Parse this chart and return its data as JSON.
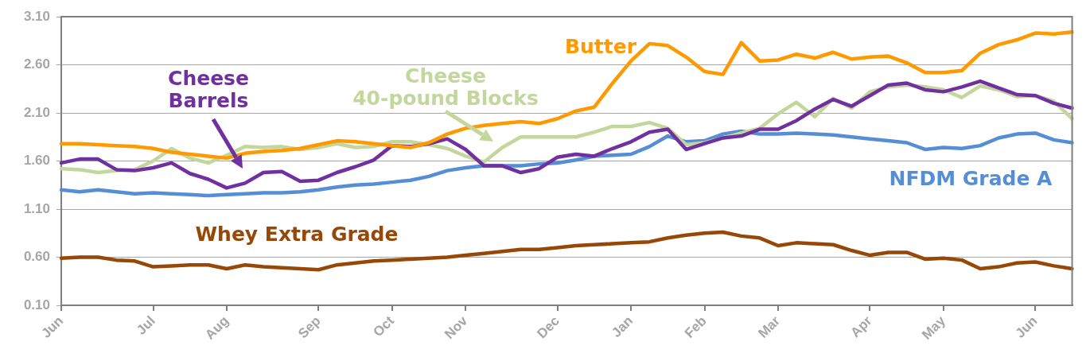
{
  "chart_data": {
    "type": "line",
    "categories": [
      "Jun",
      null,
      null,
      null,
      null,
      "Jul",
      null,
      null,
      null,
      "Aug",
      null,
      null,
      null,
      null,
      "Sep",
      null,
      null,
      null,
      "Oct",
      null,
      null,
      null,
      "Nov",
      null,
      null,
      null,
      null,
      "Dec",
      null,
      null,
      null,
      "Jan",
      null,
      null,
      null,
      "Feb",
      null,
      null,
      null,
      "Mar",
      null,
      null,
      null,
      null,
      "Apr",
      null,
      null,
      null,
      "May",
      null,
      null,
      null,
      null,
      "Jun",
      null,
      null
    ],
    "ylim": [
      0.1,
      3.1
    ],
    "yticks": [
      {
        "value": 0.1,
        "label": "0.10"
      },
      {
        "value": 0.6,
        "label": "0.60"
      },
      {
        "value": 1.1,
        "label": "1.10"
      },
      {
        "value": 1.6,
        "label": "1.60"
      },
      {
        "value": 2.1,
        "label": "2.10"
      },
      {
        "value": 2.6,
        "label": "2.60"
      },
      {
        "value": 3.1,
        "label": "3.10"
      }
    ],
    "grid": "y",
    "legend": false,
    "marker": "none",
    "line_style": "solid",
    "series": [
      {
        "name": "Butter",
        "color": "#ff9900",
        "values": [
          1.78,
          1.78,
          1.77,
          1.76,
          1.75,
          1.73,
          1.69,
          1.67,
          1.65,
          1.63,
          1.68,
          1.7,
          1.71,
          1.73,
          1.77,
          1.81,
          1.8,
          1.78,
          1.76,
          1.74,
          1.79,
          1.88,
          1.94,
          1.97,
          1.99,
          2.01,
          1.99,
          2.04,
          2.12,
          2.16,
          2.41,
          2.64,
          2.82,
          2.8,
          2.68,
          2.53,
          2.5,
          2.83,
          2.64,
          2.65,
          2.71,
          2.67,
          2.73,
          2.66,
          2.68,
          2.69,
          2.62,
          2.52,
          2.52,
          2.54,
          2.72,
          2.81,
          2.86,
          2.93,
          2.92,
          2.94
        ]
      },
      {
        "name": "Cheese Barrels",
        "color": "#7030a0",
        "values": [
          1.58,
          1.62,
          1.62,
          1.51,
          1.5,
          1.53,
          1.58,
          1.47,
          1.41,
          1.32,
          1.37,
          1.48,
          1.49,
          1.39,
          1.4,
          1.48,
          1.54,
          1.61,
          1.76,
          1.75,
          1.78,
          1.83,
          1.72,
          1.55,
          1.55,
          1.48,
          1.52,
          1.64,
          1.67,
          1.65,
          1.73,
          1.8,
          1.9,
          1.93,
          1.72,
          1.78,
          1.84,
          1.86,
          1.93,
          1.93,
          2.02,
          2.14,
          2.24,
          2.17,
          2.28,
          2.39,
          2.41,
          2.34,
          2.32,
          2.37,
          2.43,
          2.36,
          2.29,
          2.28,
          2.2,
          2.15
        ]
      },
      {
        "name": "Cheese 40-pound Blocks",
        "color": "#c3d69b",
        "values": [
          1.52,
          1.51,
          1.48,
          1.5,
          1.51,
          1.6,
          1.73,
          1.63,
          1.58,
          1.66,
          1.75,
          1.74,
          1.75,
          1.72,
          1.74,
          1.78,
          1.74,
          1.75,
          1.8,
          1.8,
          1.77,
          1.73,
          1.65,
          1.59,
          1.74,
          1.85,
          1.85,
          1.85,
          1.85,
          1.9,
          1.96,
          1.96,
          2.0,
          1.94,
          1.77,
          1.79,
          1.84,
          1.89,
          1.94,
          2.09,
          2.21,
          2.06,
          2.25,
          2.15,
          2.32,
          2.37,
          2.39,
          2.37,
          2.34,
          2.26,
          2.38,
          2.34,
          2.27,
          2.28,
          2.22,
          2.04
        ]
      },
      {
        "name": "NFDM Grade A",
        "color": "#558ed5",
        "values": [
          1.3,
          1.28,
          1.3,
          1.28,
          1.26,
          1.27,
          1.26,
          1.25,
          1.24,
          1.25,
          1.26,
          1.27,
          1.27,
          1.28,
          1.3,
          1.33,
          1.35,
          1.36,
          1.38,
          1.4,
          1.44,
          1.5,
          1.53,
          1.55,
          1.55,
          1.55,
          1.57,
          1.58,
          1.61,
          1.65,
          1.66,
          1.67,
          1.75,
          1.86,
          1.8,
          1.81,
          1.88,
          1.91,
          1.88,
          1.88,
          1.89,
          1.88,
          1.87,
          1.85,
          1.83,
          1.81,
          1.79,
          1.72,
          1.74,
          1.73,
          1.76,
          1.84,
          1.88,
          1.89,
          1.82,
          1.79
        ]
      },
      {
        "name": "Whey Extra Grade",
        "color": "#974706",
        "values": [
          0.59,
          0.6,
          0.6,
          0.57,
          0.56,
          0.5,
          0.51,
          0.52,
          0.52,
          0.48,
          0.52,
          0.5,
          0.49,
          0.48,
          0.47,
          0.52,
          0.54,
          0.56,
          0.57,
          0.58,
          0.59,
          0.6,
          0.62,
          0.64,
          0.66,
          0.68,
          0.68,
          0.7,
          0.72,
          0.73,
          0.74,
          0.75,
          0.76,
          0.8,
          0.83,
          0.85,
          0.86,
          0.82,
          0.8,
          0.72,
          0.75,
          0.74,
          0.73,
          0.67,
          0.62,
          0.65,
          0.65,
          0.58,
          0.59,
          0.57,
          0.48,
          0.5,
          0.54,
          0.55,
          0.51,
          0.48
        ]
      }
    ]
  }
}
